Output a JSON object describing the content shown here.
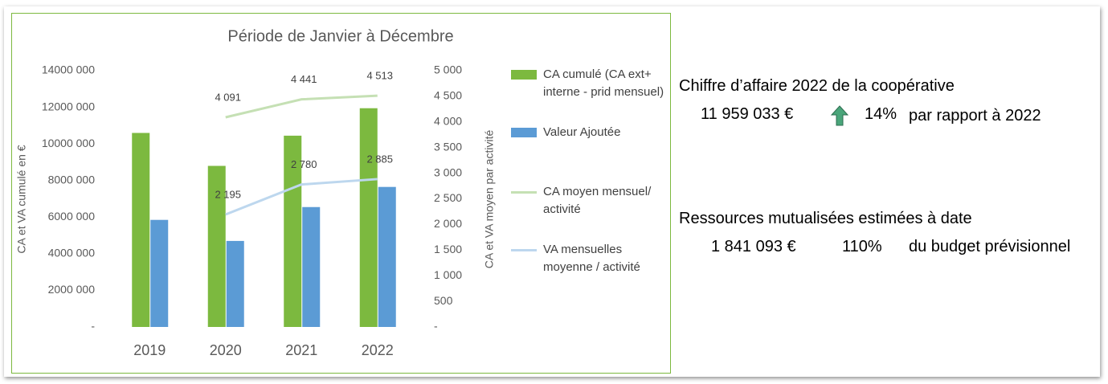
{
  "chart_data": {
    "type": "bar",
    "title": "Période de Janvier à Décembre",
    "categories": [
      "2019",
      "2020",
      "2021",
      "2022"
    ],
    "y_label": "CA et VA cumulé en €",
    "y2_label": "CA et VA moyen par activité",
    "ylim": [
      0,
      14000000
    ],
    "yticks": [
      {
        "value": 0,
        "label": "-"
      },
      {
        "value": 2000000,
        "label": "2000 000"
      },
      {
        "value": 4000000,
        "label": "4000 000"
      },
      {
        "value": 6000000,
        "label": "6000 000"
      },
      {
        "value": 8000000,
        "label": "8000 000"
      },
      {
        "value": 10000000,
        "label": "10000 000"
      },
      {
        "value": 12000000,
        "label": "12000 000"
      },
      {
        "value": 14000000,
        "label": "14000 000"
      }
    ],
    "y2lim": [
      0,
      5000
    ],
    "y2ticks": [
      {
        "value": 0,
        "label": "-"
      },
      {
        "value": 500,
        "label": "500"
      },
      {
        "value": 1000,
        "label": "1 000"
      },
      {
        "value": 1500,
        "label": "1 500"
      },
      {
        "value": 2000,
        "label": "2 000"
      },
      {
        "value": 2500,
        "label": "2 500"
      },
      {
        "value": 3000,
        "label": "3 000"
      },
      {
        "value": 3500,
        "label": "3 500"
      },
      {
        "value": 4000,
        "label": "4 000"
      },
      {
        "value": 4500,
        "label": "4 500"
      },
      {
        "value": 5000,
        "label": "5 000"
      }
    ],
    "series": [
      {
        "name": "CA cumulé  (CA ext+ interne - prid mensuel)",
        "type": "bar",
        "color": "#7cb93f",
        "values": [
          10600000,
          8800000,
          10450000,
          11950000
        ]
      },
      {
        "name": "Valeur Ajoutée",
        "type": "bar",
        "color": "#5b9bd5",
        "values": [
          5850000,
          4700000,
          6550000,
          7650000
        ]
      },
      {
        "name": "CA moyen mensuel/ activité",
        "type": "line",
        "axis": "y2",
        "color": "#c5e0b4",
        "values": [
          null,
          4091,
          4441,
          4513
        ],
        "value_labels": [
          null,
          "4 091",
          "4 441",
          "4 513"
        ]
      },
      {
        "name": "VA mensuelles moyenne / activité",
        "type": "line",
        "axis": "y2",
        "color": "#bdd7ee",
        "values": [
          null,
          2195,
          2780,
          2885
        ],
        "value_labels": [
          null,
          "2 195",
          "2 780",
          "2 885"
        ]
      }
    ]
  },
  "summary": {
    "revenue_title": "Chiffre d’affaire 2022 de la coopérative",
    "revenue_amount": "11 959 033 €",
    "revenue_growth": "14%",
    "revenue_growth_text": "par rapport à 2022",
    "resources_title": "Ressources mutualisées estimées à date",
    "resources_amount": "1 841 093 €",
    "resources_ratio": "110%",
    "resources_ratio_text": "du budget prévisionnel"
  }
}
